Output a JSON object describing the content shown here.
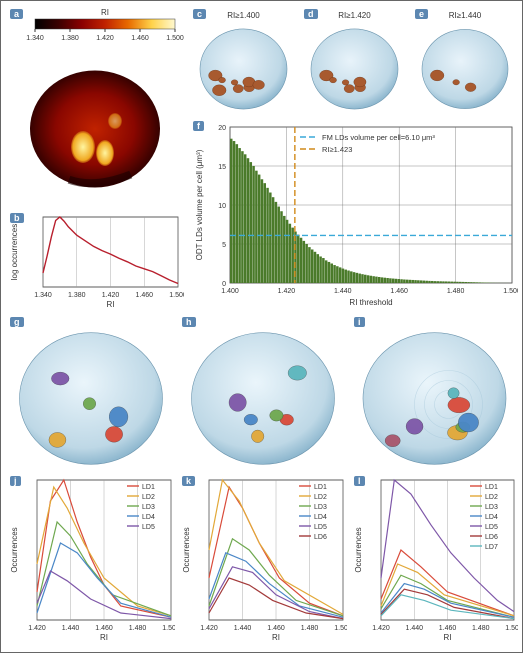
{
  "panel_border_color": "#4a7aa8",
  "background": "#ffffff",
  "a": {
    "title": "RI",
    "colorbar_ticks": [
      "1.340",
      "1.380",
      "1.420",
      "1.460",
      "1.500"
    ],
    "gradient": [
      "#000000",
      "#3a0000",
      "#8a0000",
      "#c02200",
      "#e86b00",
      "#ffd24a",
      "#fff9d0"
    ]
  },
  "b": {
    "xlabel": "RI",
    "ylabel": "log occurrences",
    "xlim": [
      1.34,
      1.5
    ],
    "xticks": [
      "1.340",
      "1.380",
      "1.420",
      "1.460",
      "1.500"
    ],
    "line_color": "#b81f2d",
    "data": [
      [
        1.34,
        0.2
      ],
      [
        1.345,
        0.45
      ],
      [
        1.35,
        0.72
      ],
      [
        1.355,
        0.95
      ],
      [
        1.36,
        1.0
      ],
      [
        1.365,
        0.94
      ],
      [
        1.37,
        0.86
      ],
      [
        1.38,
        0.74
      ],
      [
        1.39,
        0.66
      ],
      [
        1.4,
        0.58
      ],
      [
        1.41,
        0.52
      ],
      [
        1.42,
        0.47
      ],
      [
        1.43,
        0.41
      ],
      [
        1.44,
        0.36
      ],
      [
        1.45,
        0.3
      ],
      [
        1.46,
        0.26
      ],
      [
        1.47,
        0.22
      ],
      [
        1.48,
        0.16
      ],
      [
        1.49,
        0.1
      ],
      [
        1.5,
        0.05
      ]
    ],
    "grid_color": "#9a9a9a"
  },
  "c": {
    "title": "RI≥1.400",
    "cell_color": "#bed8e6",
    "blob_color": "#a85a2f",
    "n_blobs": 8
  },
  "d": {
    "title": "RI≥1.420",
    "cell_color": "#bed8e6",
    "blob_color": "#a85a2f",
    "n_blobs": 6
  },
  "e": {
    "title": "RI≥1.440",
    "cell_color": "#bed8e6",
    "blob_color": "#a85a2f",
    "n_blobs": 3
  },
  "f": {
    "xlabel": "RI threshold",
    "ylabel": "ODT LDs volume per cell (μm³)",
    "xlim": [
      1.4,
      1.5
    ],
    "xticks": [
      "1.400",
      "1.420",
      "1.440",
      "1.460",
      "1.480",
      "1.500"
    ],
    "ylim": [
      0,
      20
    ],
    "yticks": [
      "0",
      "5",
      "10",
      "15",
      "20"
    ],
    "bar_color": "#4a7a2a",
    "grid_color": "#707070",
    "legend": [
      {
        "label": "FM LDs volume per cell=6.10 μm³",
        "color": "#3aa9d8",
        "dash": "6,3"
      },
      {
        "label": "RI≥1.423",
        "color": "#d18a1a",
        "dash": "6,3"
      }
    ],
    "ref_y": 6.1,
    "ref_x": 1.423,
    "bars_x_step": 0.001,
    "values": [
      18.5,
      18.2,
      17.8,
      17.3,
      16.9,
      16.5,
      16.0,
      15.5,
      15.0,
      14.4,
      13.9,
      13.3,
      12.8,
      12.2,
      11.6,
      11.0,
      10.4,
      9.8,
      9.2,
      8.6,
      8.1,
      7.6,
      7.1,
      6.6,
      6.2,
      5.8,
      5.4,
      5.0,
      4.6,
      4.3,
      4.0,
      3.7,
      3.4,
      3.2,
      2.9,
      2.7,
      2.5,
      2.3,
      2.15,
      2.0,
      1.85,
      1.72,
      1.6,
      1.49,
      1.39,
      1.3,
      1.21,
      1.13,
      1.06,
      0.99,
      0.93,
      0.87,
      0.82,
      0.77,
      0.72,
      0.68,
      0.64,
      0.6,
      0.57,
      0.54,
      0.51,
      0.48,
      0.45,
      0.43,
      0.41,
      0.39,
      0.37,
      0.35,
      0.33,
      0.31,
      0.29,
      0.27,
      0.26,
      0.24,
      0.23,
      0.22,
      0.21,
      0.2,
      0.19,
      0.18,
      0.17,
      0.16,
      0.15,
      0.14,
      0.13,
      0.12,
      0.11,
      0.1,
      0.09,
      0.08,
      0.07,
      0.06,
      0.05,
      0.04,
      0.03,
      0.02,
      0.02,
      0.01,
      0.01,
      0.01,
      0.0
    ]
  },
  "ghi": {
    "cell_color": "#bed8e6",
    "palette": [
      "#d94b3a",
      "#e2a838",
      "#6fa84f",
      "#4a87c7",
      "#7e57a8",
      "#5cb6bd",
      "#a8566c"
    ],
    "g_n": 5,
    "h_n": 6,
    "i_n": 7
  },
  "jkl_common": {
    "xlabel": "RI",
    "ylabel": "Occurrences",
    "xlim": [
      1.42,
      1.5
    ],
    "xticks": [
      "1.420",
      "1.440",
      "1.460",
      "1.480",
      "1.500"
    ],
    "grid_color": "#9a9a9a"
  },
  "j": {
    "legend": [
      "LD1",
      "LD2",
      "LD3",
      "LD4",
      "LD5"
    ],
    "colors": [
      "#d94b3a",
      "#e2a838",
      "#6fa84f",
      "#4a87c7",
      "#7e57a8"
    ],
    "series": [
      [
        [
          1.42,
          0.2
        ],
        [
          1.428,
          0.85
        ],
        [
          1.436,
          1.0
        ],
        [
          1.444,
          0.7
        ],
        [
          1.452,
          0.45
        ],
        [
          1.46,
          0.25
        ],
        [
          1.47,
          0.1
        ],
        [
          1.5,
          0.02
        ]
      ],
      [
        [
          1.42,
          0.4
        ],
        [
          1.43,
          0.95
        ],
        [
          1.438,
          0.8
        ],
        [
          1.448,
          0.55
        ],
        [
          1.46,
          0.3
        ],
        [
          1.48,
          0.1
        ],
        [
          1.5,
          0.03
        ]
      ],
      [
        [
          1.42,
          0.1
        ],
        [
          1.432,
          0.7
        ],
        [
          1.44,
          0.6
        ],
        [
          1.45,
          0.4
        ],
        [
          1.465,
          0.18
        ],
        [
          1.5,
          0.03
        ]
      ],
      [
        [
          1.42,
          0.05
        ],
        [
          1.434,
          0.55
        ],
        [
          1.444,
          0.48
        ],
        [
          1.456,
          0.3
        ],
        [
          1.47,
          0.12
        ],
        [
          1.5,
          0.02
        ]
      ],
      [
        [
          1.42,
          0.12
        ],
        [
          1.428,
          0.35
        ],
        [
          1.438,
          0.28
        ],
        [
          1.452,
          0.15
        ],
        [
          1.47,
          0.05
        ],
        [
          1.5,
          0.01
        ]
      ]
    ]
  },
  "k": {
    "legend": [
      "LD1",
      "LD2",
      "LD3",
      "LD4",
      "LD5",
      "LD6"
    ],
    "colors": [
      "#d94b3a",
      "#e2a838",
      "#6fa84f",
      "#4a87c7",
      "#7e57a8",
      "#a33a3a"
    ],
    "series": [
      [
        [
          1.42,
          0.3
        ],
        [
          1.432,
          0.95
        ],
        [
          1.44,
          0.8
        ],
        [
          1.45,
          0.55
        ],
        [
          1.462,
          0.3
        ],
        [
          1.48,
          0.12
        ],
        [
          1.5,
          0.03
        ]
      ],
      [
        [
          1.42,
          0.5
        ],
        [
          1.428,
          1.0
        ],
        [
          1.438,
          0.85
        ],
        [
          1.45,
          0.55
        ],
        [
          1.465,
          0.28
        ],
        [
          1.5,
          0.04
        ]
      ],
      [
        [
          1.42,
          0.1
        ],
        [
          1.434,
          0.58
        ],
        [
          1.444,
          0.5
        ],
        [
          1.456,
          0.32
        ],
        [
          1.472,
          0.14
        ],
        [
          1.5,
          0.03
        ]
      ],
      [
        [
          1.42,
          0.15
        ],
        [
          1.43,
          0.48
        ],
        [
          1.442,
          0.42
        ],
        [
          1.456,
          0.26
        ],
        [
          1.474,
          0.1
        ],
        [
          1.5,
          0.02
        ]
      ],
      [
        [
          1.42,
          0.08
        ],
        [
          1.434,
          0.38
        ],
        [
          1.446,
          0.34
        ],
        [
          1.46,
          0.18
        ],
        [
          1.48,
          0.06
        ],
        [
          1.5,
          0.01
        ]
      ],
      [
        [
          1.42,
          0.05
        ],
        [
          1.432,
          0.3
        ],
        [
          1.444,
          0.25
        ],
        [
          1.458,
          0.14
        ],
        [
          1.478,
          0.05
        ],
        [
          1.5,
          0.01
        ]
      ]
    ]
  },
  "l": {
    "legend": [
      "LD1",
      "LD2",
      "LD3",
      "LD4",
      "LD5",
      "LD6",
      "LD7"
    ],
    "colors": [
      "#d94b3a",
      "#e2a838",
      "#6fa84f",
      "#4a87c7",
      "#7e57a8",
      "#a33a3a",
      "#5cb6bd"
    ],
    "series": [
      [
        [
          1.42,
          0.15
        ],
        [
          1.432,
          0.5
        ],
        [
          1.444,
          0.38
        ],
        [
          1.46,
          0.2
        ],
        [
          1.5,
          0.03
        ]
      ],
      [
        [
          1.42,
          0.1
        ],
        [
          1.43,
          0.4
        ],
        [
          1.442,
          0.34
        ],
        [
          1.458,
          0.18
        ],
        [
          1.5,
          0.03
        ]
      ],
      [
        [
          1.42,
          0.08
        ],
        [
          1.432,
          0.32
        ],
        [
          1.444,
          0.26
        ],
        [
          1.46,
          0.14
        ],
        [
          1.5,
          0.02
        ]
      ],
      [
        [
          1.42,
          0.05
        ],
        [
          1.434,
          0.26
        ],
        [
          1.446,
          0.22
        ],
        [
          1.462,
          0.12
        ],
        [
          1.5,
          0.02
        ]
      ],
      [
        [
          1.42,
          0.3
        ],
        [
          1.428,
          1.0
        ],
        [
          1.438,
          0.9
        ],
        [
          1.45,
          0.68
        ],
        [
          1.462,
          0.48
        ],
        [
          1.476,
          0.3
        ],
        [
          1.49,
          0.14
        ],
        [
          1.5,
          0.06
        ]
      ],
      [
        [
          1.42,
          0.04
        ],
        [
          1.434,
          0.22
        ],
        [
          1.448,
          0.18
        ],
        [
          1.464,
          0.09
        ],
        [
          1.5,
          0.01
        ]
      ],
      [
        [
          1.42,
          0.03
        ],
        [
          1.432,
          0.18
        ],
        [
          1.446,
          0.14
        ],
        [
          1.462,
          0.07
        ],
        [
          1.5,
          0.01
        ]
      ]
    ]
  }
}
